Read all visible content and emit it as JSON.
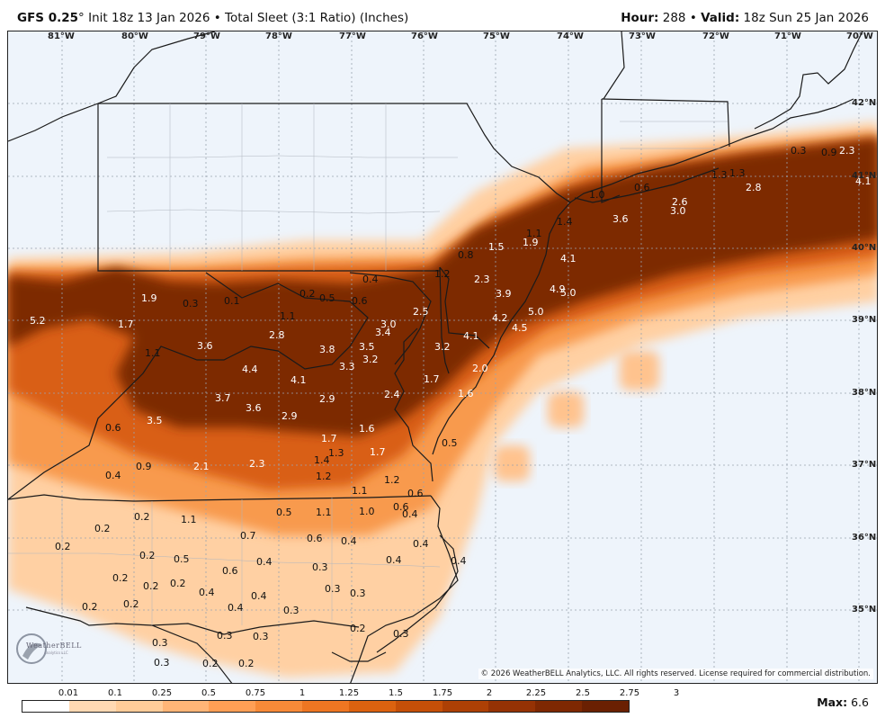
{
  "header": {
    "model": "GFS 0.25",
    "degree_symbol": "°",
    "init_text": "Init 18z 13 Jan 2026",
    "bullet": "•",
    "product_text": "Total Sleet (3:1 Ratio) (Inches)",
    "hour_label": "Hour:",
    "hour_value": "288",
    "valid_label": "Valid:",
    "valid_value": "18z Sun 25 Jan 2026"
  },
  "map": {
    "longitude_labels": [
      "81°W",
      "80°W",
      "79°W",
      "78°W",
      "77°W",
      "76°W",
      "75°W",
      "74°W",
      "73°W",
      "72°W",
      "71°W",
      "70°W"
    ],
    "latitude_labels": [
      "42°N",
      "41°N",
      "40°N",
      "39°N",
      "38°N",
      "37°N",
      "36°N",
      "35°N"
    ],
    "copyright": "© 2026 WeatherBELL Analytics, LLC. All rights reserved. License required for commercial distribution.",
    "logo_name": "WeatherBELL",
    "logo_sub": "Analytics LLC",
    "value_labels": [
      {
        "v": "5.2",
        "lx": 24,
        "ly": 295
      },
      {
        "v": "1.9",
        "lx": 148,
        "ly": 270
      },
      {
        "v": "0.3",
        "lx": 194,
        "ly": 276
      },
      {
        "v": "0.1",
        "lx": 240,
        "ly": 273
      },
      {
        "v": "0.2",
        "lx": 324,
        "ly": 265
      },
      {
        "v": "0.5",
        "lx": 346,
        "ly": 270
      },
      {
        "v": "0.6",
        "lx": 382,
        "ly": 273
      },
      {
        "v": "0.4",
        "lx": 394,
        "ly": 249
      },
      {
        "v": "1.7",
        "lx": 122,
        "ly": 299
      },
      {
        "v": "1.1",
        "lx": 302,
        "ly": 290
      },
      {
        "v": "2.8",
        "lx": 290,
        "ly": 311
      },
      {
        "v": "3.0",
        "lx": 414,
        "ly": 299
      },
      {
        "v": "3.4",
        "lx": 408,
        "ly": 308
      },
      {
        "v": "2.5",
        "lx": 450,
        "ly": 285
      },
      {
        "v": "1.1",
        "lx": 152,
        "ly": 331
      },
      {
        "v": "3.6",
        "lx": 210,
        "ly": 323
      },
      {
        "v": "3.8",
        "lx": 346,
        "ly": 327
      },
      {
        "v": "3.5",
        "lx": 390,
        "ly": 324
      },
      {
        "v": "3.2",
        "lx": 394,
        "ly": 338
      },
      {
        "v": "3.3",
        "lx": 368,
        "ly": 346
      },
      {
        "v": "3.2",
        "lx": 474,
        "ly": 324
      },
      {
        "v": "4.1",
        "lx": 506,
        "ly": 312
      },
      {
        "v": "4.4",
        "lx": 260,
        "ly": 349
      },
      {
        "v": "4.1",
        "lx": 314,
        "ly": 361
      },
      {
        "v": "2.0",
        "lx": 516,
        "ly": 348
      },
      {
        "v": "1.7",
        "lx": 462,
        "ly": 360
      },
      {
        "v": "2.4",
        "lx": 418,
        "ly": 377
      },
      {
        "v": "2.9",
        "lx": 346,
        "ly": 382
      },
      {
        "v": "1.6",
        "lx": 500,
        "ly": 376
      },
      {
        "v": "3.7",
        "lx": 230,
        "ly": 381
      },
      {
        "v": "3.6",
        "lx": 264,
        "ly": 392
      },
      {
        "v": "2.9",
        "lx": 304,
        "ly": 401
      },
      {
        "v": "1.6",
        "lx": 390,
        "ly": 415
      },
      {
        "v": "3.5",
        "lx": 154,
        "ly": 406
      },
      {
        "v": "0.6",
        "lx": 108,
        "ly": 414
      },
      {
        "v": "1.7",
        "lx": 348,
        "ly": 426
      },
      {
        "v": "1.3",
        "lx": 356,
        "ly": 442
      },
      {
        "v": "1.7",
        "lx": 402,
        "ly": 441
      },
      {
        "v": "1.4",
        "lx": 340,
        "ly": 450
      },
      {
        "v": "0.5",
        "lx": 482,
        "ly": 431
      },
      {
        "v": "2.3",
        "lx": 268,
        "ly": 454
      },
      {
        "v": "2.1",
        "lx": 206,
        "ly": 457
      },
      {
        "v": "0.9",
        "lx": 142,
        "ly": 457
      },
      {
        "v": "0.4",
        "lx": 108,
        "ly": 467
      },
      {
        "v": "1.2",
        "lx": 342,
        "ly": 468
      },
      {
        "v": "1.1",
        "lx": 382,
        "ly": 484
      },
      {
        "v": "1.2",
        "lx": 418,
        "ly": 472
      },
      {
        "v": "0.6",
        "lx": 444,
        "ly": 487
      },
      {
        "v": "0.6",
        "lx": 428,
        "ly": 502
      },
      {
        "v": "1.0",
        "lx": 390,
        "ly": 507
      },
      {
        "v": "1.1",
        "lx": 342,
        "ly": 508
      },
      {
        "v": "0.5",
        "lx": 298,
        "ly": 508
      },
      {
        "v": "0.4",
        "lx": 438,
        "ly": 510
      },
      {
        "v": "0.2",
        "lx": 140,
        "ly": 513
      },
      {
        "v": "1.1",
        "lx": 192,
        "ly": 516
      },
      {
        "v": "0.2",
        "lx": 96,
        "ly": 526
      },
      {
        "v": "0.7",
        "lx": 258,
        "ly": 534
      },
      {
        "v": "0.6",
        "lx": 332,
        "ly": 537
      },
      {
        "v": "0.4",
        "lx": 370,
        "ly": 540
      },
      {
        "v": "0.4",
        "lx": 450,
        "ly": 543
      },
      {
        "v": "0.2",
        "lx": 52,
        "ly": 546
      },
      {
        "v": "0.2",
        "lx": 146,
        "ly": 556
      },
      {
        "v": "0.5",
        "lx": 184,
        "ly": 560
      },
      {
        "v": "0.4",
        "lx": 276,
        "ly": 563
      },
      {
        "v": "0.4",
        "lx": 420,
        "ly": 561
      },
      {
        "v": "0.4",
        "lx": 492,
        "ly": 562
      },
      {
        "v": "0.6",
        "lx": 238,
        "ly": 573
      },
      {
        "v": "0.3",
        "lx": 338,
        "ly": 569
      },
      {
        "v": "0.2",
        "lx": 116,
        "ly": 581
      },
      {
        "v": "0.2",
        "lx": 150,
        "ly": 590
      },
      {
        "v": "0.2",
        "lx": 180,
        "ly": 587
      },
      {
        "v": "0.4",
        "lx": 212,
        "ly": 597
      },
      {
        "v": "0.4",
        "lx": 270,
        "ly": 601
      },
      {
        "v": "0.3",
        "lx": 352,
        "ly": 593
      },
      {
        "v": "0.3",
        "lx": 380,
        "ly": 598
      },
      {
        "v": "0.2",
        "lx": 82,
        "ly": 613
      },
      {
        "v": "0.2",
        "lx": 128,
        "ly": 610
      },
      {
        "v": "0.4",
        "lx": 244,
        "ly": 614
      },
      {
        "v": "0.3",
        "lx": 306,
        "ly": 617
      },
      {
        "v": "0.2",
        "lx": 380,
        "ly": 637
      },
      {
        "v": "0.3",
        "lx": 428,
        "ly": 643
      },
      {
        "v": "0.3",
        "lx": 160,
        "ly": 653
      },
      {
        "v": "0.3",
        "lx": 232,
        "ly": 645
      },
      {
        "v": "0.3",
        "lx": 272,
        "ly": 646
      },
      {
        "v": "0.3",
        "lx": 162,
        "ly": 675
      },
      {
        "v": "0.2",
        "lx": 216,
        "ly": 676
      },
      {
        "v": "0.2",
        "lx": 256,
        "ly": 676
      },
      {
        "v": "1.0",
        "lx": 646,
        "ly": 155
      },
      {
        "v": "0.6",
        "lx": 696,
        "ly": 147
      },
      {
        "v": "1.3",
        "lx": 782,
        "ly": 133
      },
      {
        "v": "1.3",
        "lx": 802,
        "ly": 131
      },
      {
        "v": "2.8",
        "lx": 820,
        "ly": 147
      },
      {
        "v": "0.3",
        "lx": 870,
        "ly": 106
      },
      {
        "v": "0.9",
        "lx": 904,
        "ly": 108
      },
      {
        "v": "2.3",
        "lx": 924,
        "ly": 106
      },
      {
        "v": "4.1",
        "lx": 942,
        "ly": 140
      },
      {
        "v": "2.6",
        "lx": 738,
        "ly": 163
      },
      {
        "v": "3.0",
        "lx": 736,
        "ly": 173
      },
      {
        "v": "3.6",
        "lx": 672,
        "ly": 182
      },
      {
        "v": "1.4",
        "lx": 610,
        "ly": 185
      },
      {
        "v": "1.1",
        "lx": 576,
        "ly": 198
      },
      {
        "v": "1.9",
        "lx": 572,
        "ly": 208
      },
      {
        "v": "1.5",
        "lx": 534,
        "ly": 213
      },
      {
        "v": "0.8",
        "lx": 500,
        "ly": 222
      },
      {
        "v": "4.1",
        "lx": 614,
        "ly": 226
      },
      {
        "v": "1.2",
        "lx": 474,
        "ly": 243
      },
      {
        "v": "2.3",
        "lx": 518,
        "ly": 249
      },
      {
        "v": "4.9",
        "lx": 602,
        "ly": 260
      },
      {
        "v": "5.0",
        "lx": 614,
        "ly": 264
      },
      {
        "v": "3.9",
        "lx": 542,
        "ly": 265
      },
      {
        "v": "5.0",
        "lx": 578,
        "ly": 285
      },
      {
        "v": "4.2",
        "lx": 538,
        "ly": 292
      },
      {
        "v": "4.5",
        "lx": 560,
        "ly": 303
      }
    ]
  },
  "colorbar": {
    "ticks": [
      "0.01",
      "0.1",
      "0.25",
      "0.5",
      "0.75",
      "1",
      "1.25",
      "1.5",
      "1.75",
      "2",
      "2.25",
      "2.5",
      "2.75",
      "3"
    ],
    "colors": [
      "#ffffff",
      "#ffd9b3",
      "#ffcc99",
      "#ffb577",
      "#ff9f55",
      "#f78a38",
      "#ee7622",
      "#dc620f",
      "#c54f08",
      "#ad4005",
      "#953204",
      "#7e2802",
      "#6a2002"
    ],
    "max_label": "Max:",
    "max_value": "6.6"
  }
}
